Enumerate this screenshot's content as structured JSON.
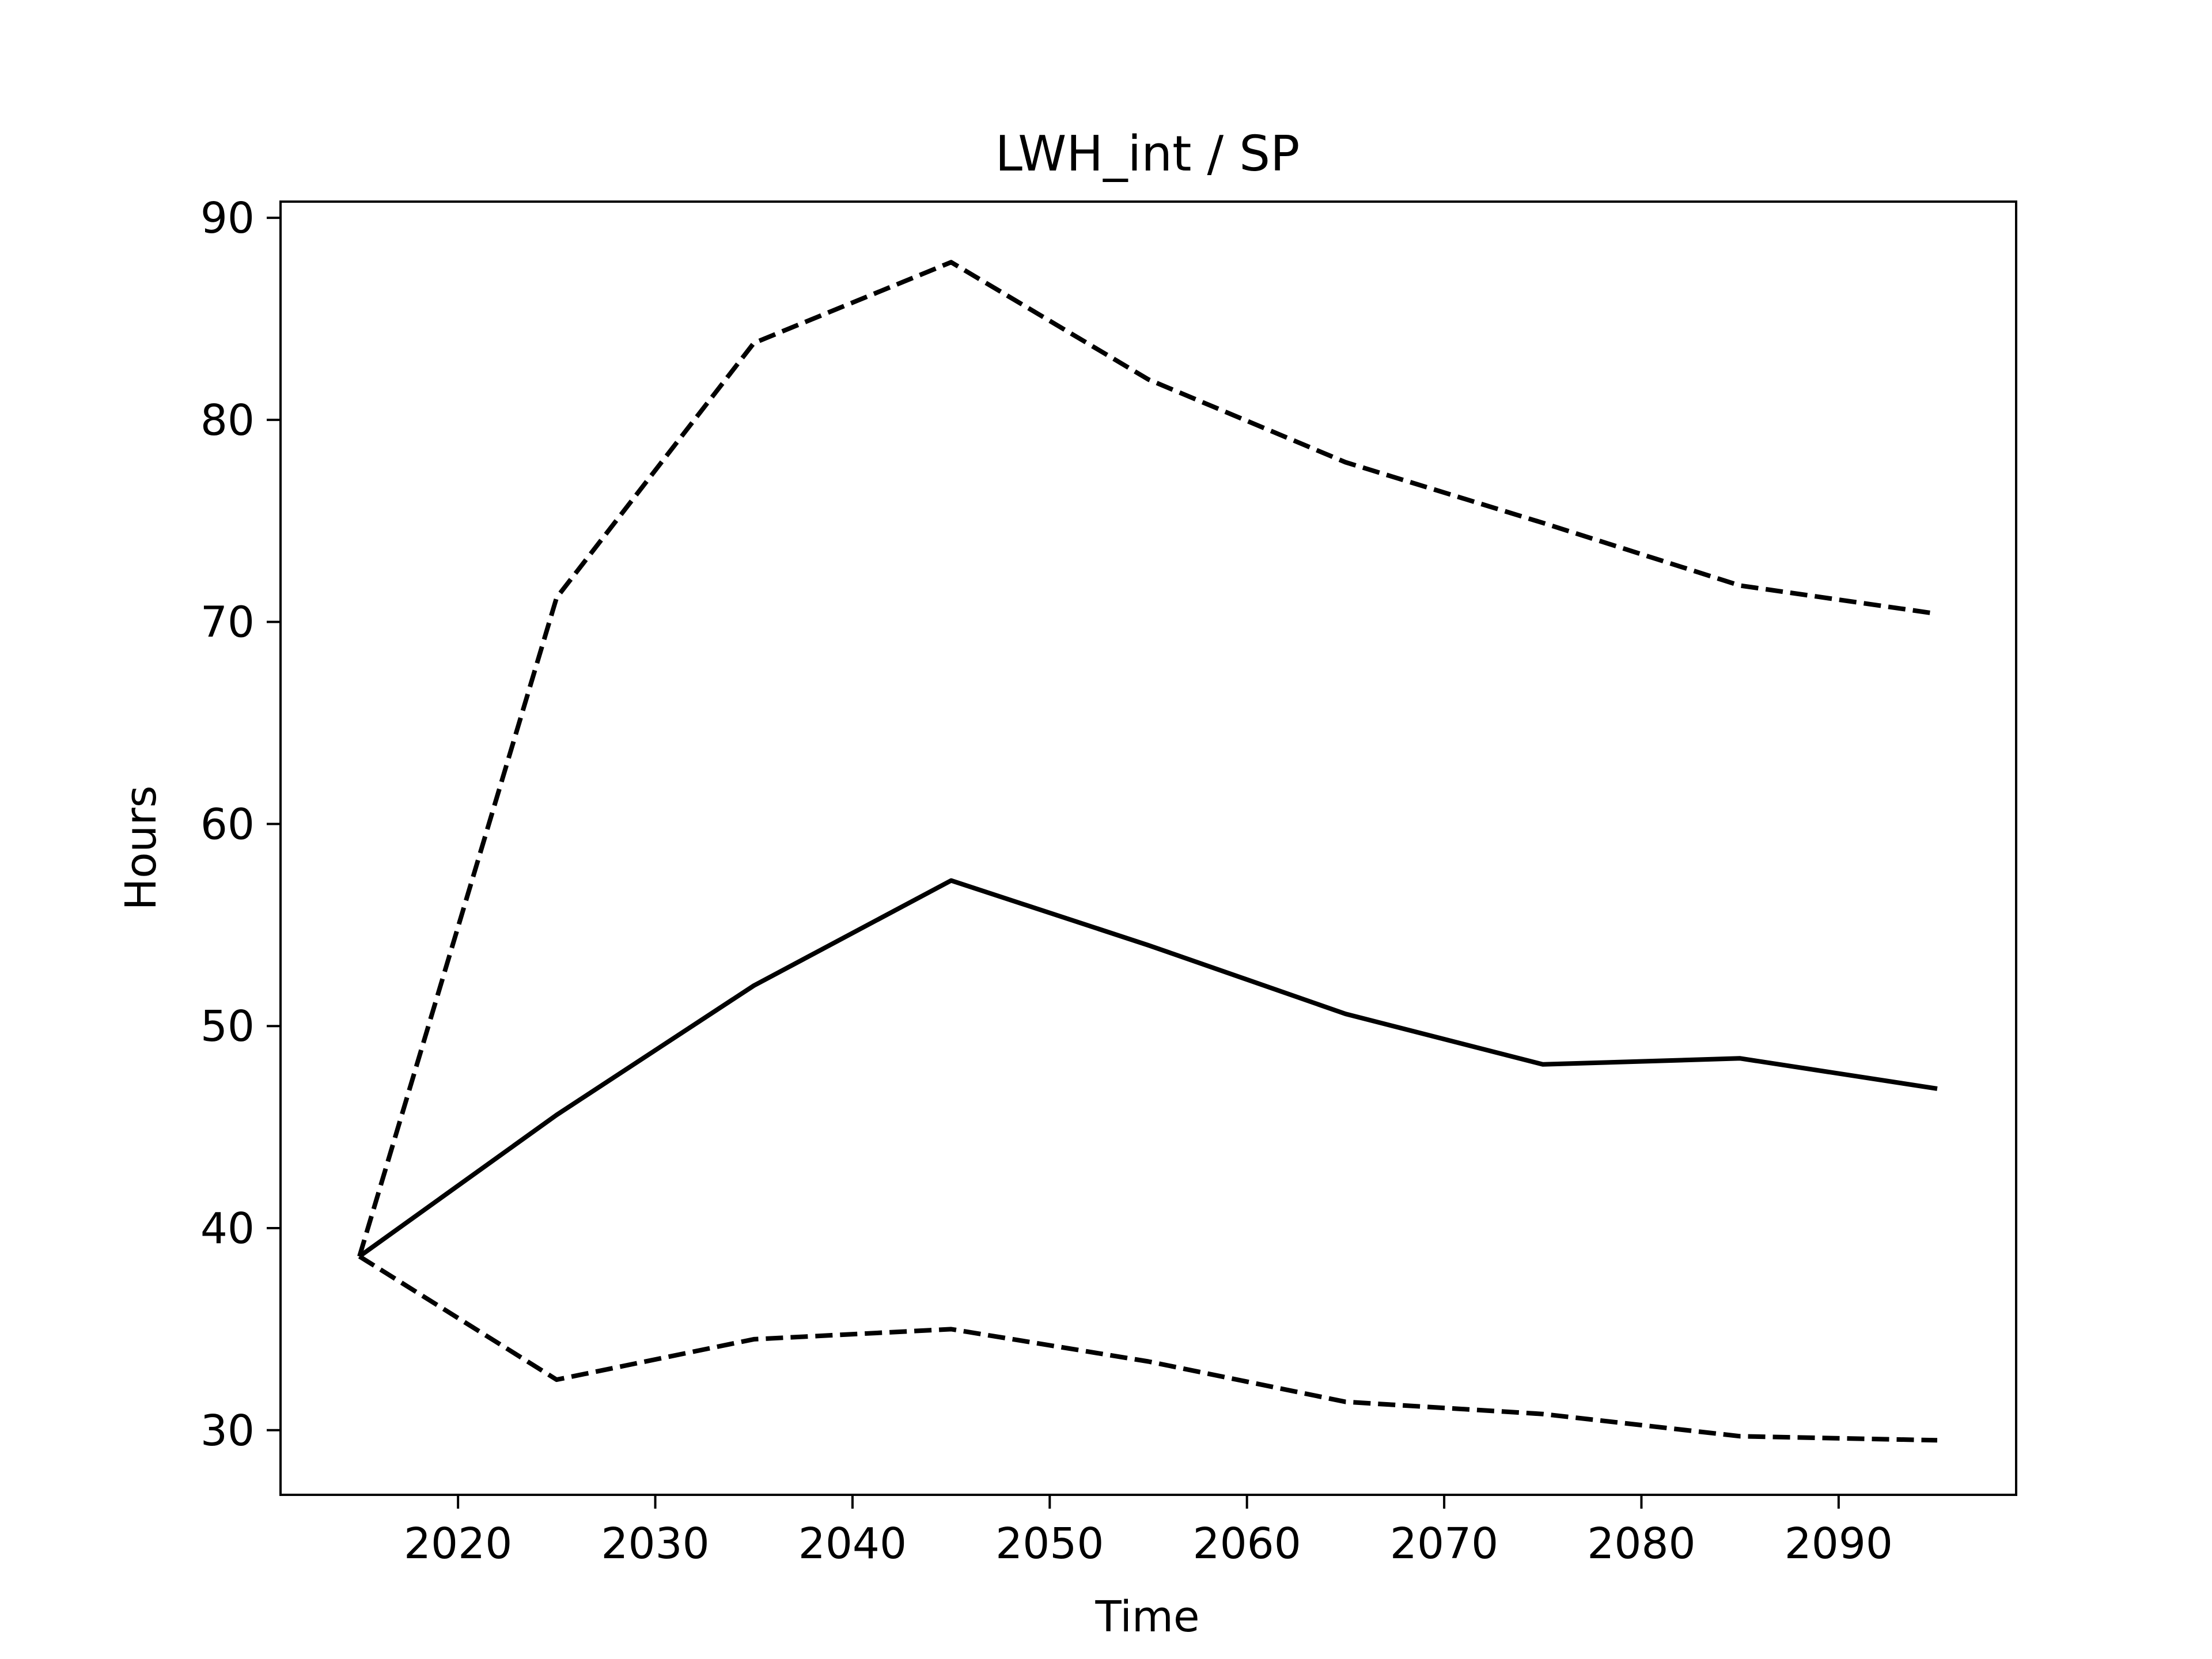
{
  "chart_data": {
    "type": "line",
    "title": "LWH_int / SP",
    "xlabel": "Time",
    "ylabel": "Hours",
    "xlim": [
      2011,
      2099
    ],
    "ylim": [
      26.8,
      90.8
    ],
    "xticks": [
      2020,
      2030,
      2040,
      2050,
      2060,
      2070,
      2080,
      2090
    ],
    "yticks": [
      30,
      40,
      50,
      60,
      70,
      80,
      90
    ],
    "grid": false,
    "legend": null,
    "series": [
      {
        "style": "solid",
        "color": "#000000",
        "x": [
          2015,
          2025,
          2035,
          2045,
          2055,
          2065,
          2075,
          2085,
          2095
        ],
        "y": [
          38.6,
          45.6,
          52.0,
          57.2,
          54.0,
          50.6,
          48.1,
          48.4,
          46.9
        ]
      },
      {
        "style": "dashed",
        "color": "#000000",
        "x": [
          2015,
          2025,
          2035,
          2045,
          2055,
          2065,
          2075,
          2085,
          2095
        ],
        "y": [
          38.6,
          71.2,
          83.8,
          87.8,
          82.0,
          77.9,
          74.9,
          71.8,
          70.4
        ]
      },
      {
        "style": "dashed",
        "color": "#000000",
        "x": [
          2015,
          2025,
          2035,
          2045,
          2055,
          2065,
          2075,
          2085,
          2095
        ],
        "y": [
          38.6,
          32.5,
          34.5,
          35.0,
          33.4,
          31.4,
          30.8,
          29.7,
          29.5
        ]
      }
    ]
  }
}
